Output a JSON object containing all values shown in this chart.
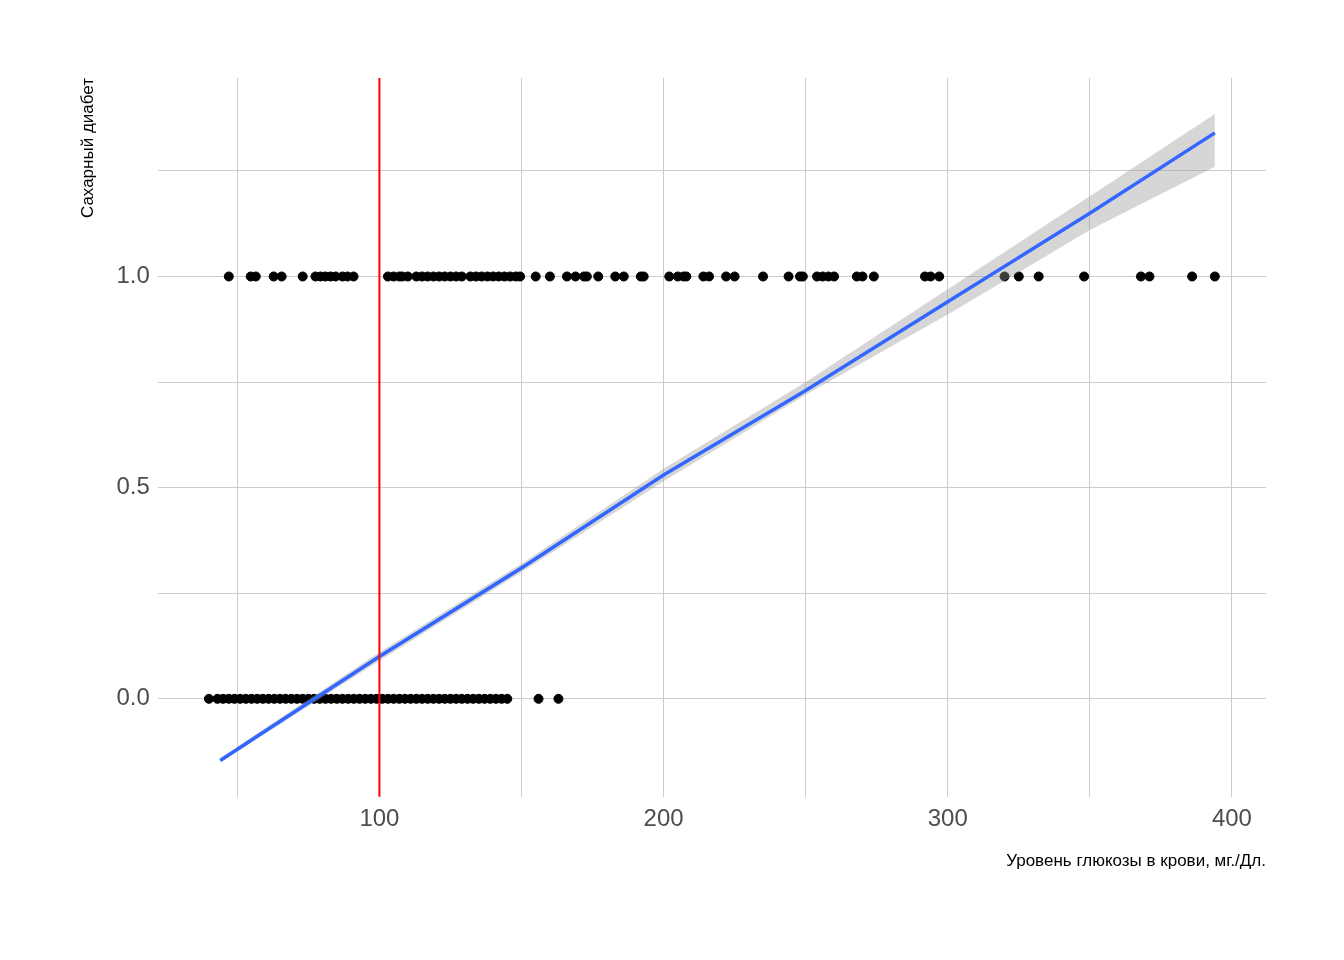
{
  "chart_data": {
    "type": "scatter",
    "xlabel": "Уровень глюкозы в крови, мг./Дл.",
    "ylabel": "Сахарный диабет",
    "xlim": [
      22,
      412
    ],
    "ylim": [
      -0.232,
      1.47
    ],
    "xticks": [
      {
        "value": 50,
        "label": null
      },
      100,
      {
        "value": 150,
        "label": null
      },
      200,
      {
        "value": 250,
        "label": null
      },
      300,
      {
        "value": 350,
        "label": null
      },
      400
    ],
    "yticks": [
      {
        "value": 0,
        "label": "0.0"
      },
      {
        "value": 0.25,
        "label": null
      },
      {
        "value": 0.5,
        "label": "0.5"
      },
      {
        "value": 0.75,
        "label": null
      },
      {
        "value": 1,
        "label": "1.0"
      },
      {
        "value": 1.25,
        "label": null
      }
    ],
    "grid": true,
    "ref_lines": [
      {
        "axis": "x",
        "value": 100,
        "label": null,
        "color": "#ff0000"
      }
    ],
    "series": [
      {
        "marker": "circle",
        "color": "#000000",
        "x": [
          47,
          54.7,
          56.5,
          62.8,
          65.6,
          73,
          77.5,
          79.3,
          81,
          82.8,
          84.6,
          87,
          88.8,
          90.9,
          103,
          105,
          107,
          108,
          110,
          113,
          115,
          117,
          119,
          121,
          123,
          125,
          127,
          129,
          132,
          134,
          136,
          138,
          140,
          142,
          144,
          146,
          148,
          149.5,
          155,
          160,
          166,
          169,
          172,
          173,
          177,
          183,
          186,
          192,
          193,
          202,
          205,
          207,
          208,
          214,
          216,
          222,
          225,
          235,
          244,
          248,
          249,
          254,
          256,
          258,
          260,
          268,
          270,
          274,
          292,
          294,
          297,
          320,
          325,
          332,
          348,
          368,
          371,
          386,
          394,
          40,
          43,
          45,
          47,
          49,
          51,
          53,
          55,
          57,
          59,
          61,
          63,
          65,
          67,
          69,
          71,
          73,
          75,
          77,
          79,
          81,
          83,
          85,
          87,
          89,
          91,
          93,
          95,
          97,
          99,
          101,
          103,
          105,
          107,
          109,
          111,
          113,
          115,
          117,
          119,
          121,
          123,
          125,
          127,
          129,
          131,
          133,
          135,
          137,
          139,
          141,
          143,
          145,
          156,
          163
        ],
        "values": [
          1,
          1,
          1,
          1,
          1,
          1,
          1,
          1,
          1,
          1,
          1,
          1,
          1,
          1,
          1,
          1,
          1,
          1,
          1,
          1,
          1,
          1,
          1,
          1,
          1,
          1,
          1,
          1,
          1,
          1,
          1,
          1,
          1,
          1,
          1,
          1,
          1,
          1,
          1,
          1,
          1,
          1,
          1,
          1,
          1,
          1,
          1,
          1,
          1,
          1,
          1,
          1,
          1,
          1,
          1,
          1,
          1,
          1,
          1,
          1,
          1,
          1,
          1,
          1,
          1,
          1,
          1,
          1,
          1,
          1,
          1,
          1,
          1,
          1,
          1,
          1,
          1,
          1,
          1,
          0,
          0,
          0,
          0,
          0,
          0,
          0,
          0,
          0,
          0,
          0,
          0,
          0,
          0,
          0,
          0,
          0,
          0,
          0,
          0,
          0,
          0,
          0,
          0,
          0,
          0,
          0,
          0,
          0,
          0,
          0,
          0,
          0,
          0,
          0,
          0,
          0,
          0,
          0,
          0,
          0,
          0,
          0,
          0,
          0,
          0,
          0,
          0,
          0,
          0,
          0,
          0,
          0,
          0,
          0
        ]
      },
      {
        "type": "line",
        "color": "#3366ff",
        "x": [
          44,
          100,
          150,
          200,
          250,
          300,
          350,
          394
        ],
        "values": [
          -0.146,
          0.1,
          0.31,
          0.53,
          0.73,
          0.94,
          1.15,
          1.34
        ],
        "lower": [
          -0.15,
          0.09,
          0.3,
          0.515,
          0.72,
          0.91,
          1.11,
          1.26
        ],
        "upper": [
          -0.14,
          0.11,
          0.32,
          0.545,
          0.75,
          0.97,
          1.19,
          1.385
        ]
      }
    ]
  }
}
